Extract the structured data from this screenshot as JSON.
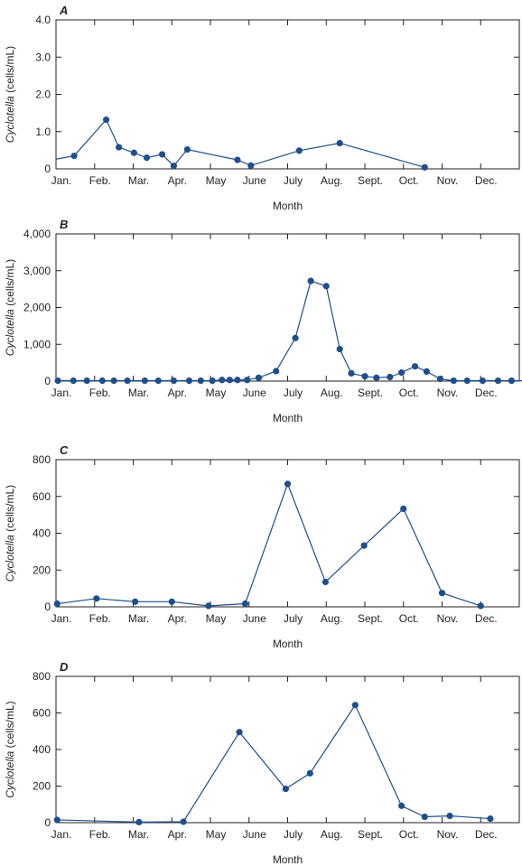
{
  "chart_data": [
    {
      "type": "line",
      "panel_label": "A",
      "xlabel": "Month",
      "ylabel_italic": "Cyclotella",
      "ylabel_unit": " (cells/mL)",
      "categories": [
        "Jan.",
        "Feb.",
        "Mar.",
        "Apr.",
        "May",
        "June",
        "July",
        "Aug.",
        "Sept.",
        "Oct.",
        "Nov.",
        "Dec."
      ],
      "yticks": [
        "0",
        "1.0",
        "2.0",
        "3.0",
        "4.0"
      ],
      "ylim": [
        0,
        4
      ],
      "line_starts_at_axis": true,
      "axis_start_value": 0.26,
      "x": [
        0.47,
        1.3,
        1.63,
        2.02,
        2.35,
        2.75,
        3.05,
        3.4,
        4.7,
        5.05,
        6.3,
        7.35,
        9.55
      ],
      "y": [
        0.35,
        1.32,
        0.58,
        0.43,
        0.3,
        0.39,
        0.08,
        0.52,
        0.24,
        0.09,
        0.49,
        0.69,
        0.04
      ]
    },
    {
      "type": "line",
      "panel_label": "B",
      "xlabel": "Month",
      "ylabel_italic": "Cyclotella",
      "ylabel_unit": " (cells/mL)",
      "categories": [
        "Jan.",
        "Feb.",
        "Mar.",
        "Apr.",
        "May",
        "June",
        "July",
        "Aug.",
        "Sept.",
        "Oct.",
        "Nov.",
        "Dec."
      ],
      "yticks": [
        "0",
        "1,000",
        "2,000",
        "3,000",
        "4,000"
      ],
      "ylim": [
        0,
        4000
      ],
      "line_starts_at_axis": false,
      "x": [
        0.05,
        0.45,
        0.8,
        1.2,
        1.5,
        1.85,
        2.3,
        2.65,
        3.05,
        3.45,
        3.75,
        4.05,
        4.3,
        4.5,
        4.7,
        4.95,
        5.25,
        5.7,
        6.2,
        6.6,
        7.0,
        7.35,
        7.65,
        8.0,
        8.3,
        8.65,
        8.95,
        9.3,
        9.6,
        9.95,
        10.3,
        10.65,
        11.05,
        11.45,
        11.8,
        12.15,
        12.5
      ],
      "y": [
        10,
        10,
        10,
        10,
        10,
        10,
        10,
        10,
        10,
        10,
        10,
        10,
        30,
        30,
        30,
        30,
        90,
        270,
        1170,
        2720,
        2580,
        870,
        210,
        130,
        90,
        110,
        230,
        400,
        260,
        60,
        10,
        10,
        10,
        10,
        10,
        10,
        10
      ]
    },
    {
      "type": "line",
      "panel_label": "C",
      "xlabel": "Month",
      "ylabel_italic": "Cyclotella",
      "ylabel_unit": " (cells/mL)",
      "categories": [
        "Jan.",
        "Feb.",
        "Mar.",
        "Apr.",
        "May",
        "June",
        "July",
        "Aug.",
        "Sept.",
        "Oct.",
        "Nov.",
        "Dec."
      ],
      "yticks": [
        "0",
        "200",
        "400",
        "600",
        "800"
      ],
      "ylim": [
        0,
        800
      ],
      "line_starts_at_axis": false,
      "x": [
        0.03,
        1.05,
        2.05,
        3.0,
        3.95,
        4.9,
        6.0,
        6.98,
        7.98,
        9.0,
        10.0,
        11.0
      ],
      "y": [
        17,
        45,
        28,
        28,
        5,
        17,
        668,
        135,
        333,
        533,
        75,
        5
      ]
    },
    {
      "type": "line",
      "panel_label": "D",
      "xlabel": "Month",
      "ylabel_italic": "Cyclotella",
      "ylabel_unit": " (cells/mL)",
      "categories": [
        "Jan.",
        "Feb.",
        "Mar.",
        "Apr.",
        "May",
        "June",
        "July",
        "Aug.",
        "Sept.",
        "Oct.",
        "Nov.",
        "Dec."
      ],
      "yticks": [
        "0",
        "200",
        "400",
        "600",
        "800"
      ],
      "ylim": [
        0,
        800
      ],
      "line_starts_at_axis": false,
      "x": [
        0.03,
        2.15,
        3.3,
        4.75,
        5.95,
        6.58,
        7.75,
        8.95,
        9.55,
        10.2,
        11.25
      ],
      "y": [
        15,
        3,
        5,
        495,
        185,
        270,
        643,
        92,
        32,
        37,
        22
      ]
    }
  ],
  "colors": {
    "series": "#1f4e8c",
    "axis": "#231f20",
    "text": "#231f20"
  }
}
